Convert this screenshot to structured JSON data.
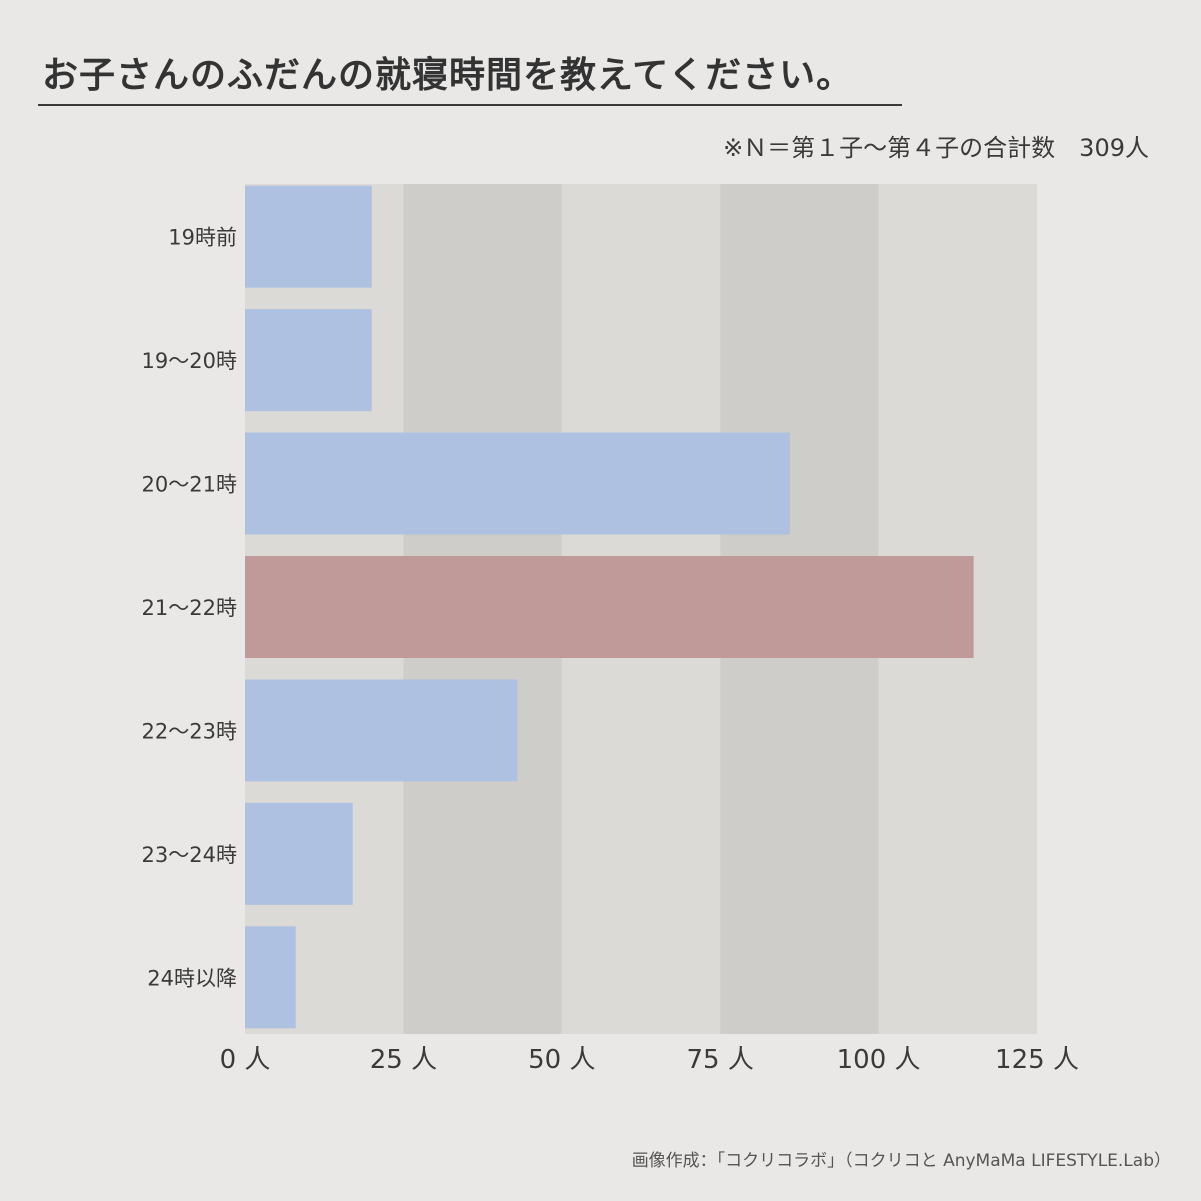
{
  "title": "お子さんのふだんの就寝時間を教えてください。",
  "note": "※Ｎ＝第１子～第４子の合計数　309人",
  "credit": "画像作成：「コクリコラボ」（コクリコと AnyMaMa LIFESTYLE.Lab）",
  "colors": {
    "bar": "#aec1e0",
    "highlight": "#c09a98",
    "band_light": "#dcdad7",
    "band_dark": "#cfcdc9"
  },
  "chart_data": {
    "type": "bar",
    "orientation": "horizontal",
    "categories": [
      "19時前",
      "19～20時",
      "20～21時",
      "21～22時",
      "22～23時",
      "23～24時",
      "24時以降"
    ],
    "values": [
      20,
      20,
      86,
      115,
      43,
      17,
      8
    ],
    "highlight_index": 3,
    "xlim": [
      0,
      125
    ],
    "xticks": [
      {
        "value": 0,
        "label": "0 人"
      },
      {
        "value": 25,
        "label": "25 人"
      },
      {
        "value": 50,
        "label": "50 人"
      },
      {
        "value": 75,
        "label": "75 人"
      },
      {
        "value": 100,
        "label": "100 人"
      },
      {
        "value": 125,
        "label": "125 人"
      }
    ],
    "grid": "alternating vertical bands"
  }
}
